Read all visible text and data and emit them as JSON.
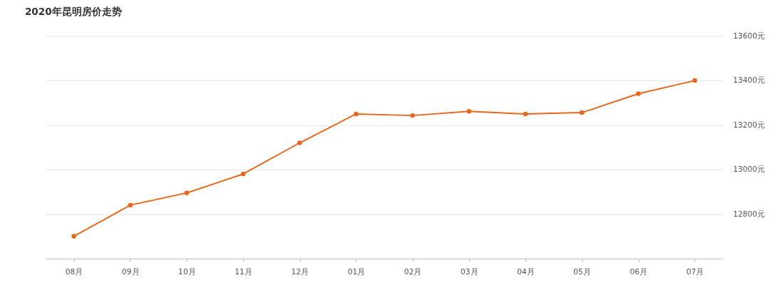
{
  "chart_data": {
    "type": "line",
    "title": "2020年昆明房价走势",
    "categories": [
      "08月",
      "09月",
      "10月",
      "11月",
      "12月",
      "01月",
      "02月",
      "03月",
      "04月",
      "05月",
      "06月",
      "07月"
    ],
    "series": [
      {
        "color": "#e8671c",
        "values": [
          12700,
          12840,
          12895,
          12980,
          13120,
          13250,
          13243,
          13262,
          13250,
          13256,
          13341,
          13400
        ]
      }
    ],
    "ylim": [
      12600,
      13600
    ],
    "yticks": [
      {
        "value": 12800,
        "label": "12800元"
      },
      {
        "value": 13000,
        "label": "13000元"
      },
      {
        "value": 13200,
        "label": "13200元"
      },
      {
        "value": 13400,
        "label": "13400元"
      },
      {
        "value": 13600,
        "label": "13600元"
      }
    ],
    "grid": "y",
    "marker": "circle",
    "line_style": "solid"
  }
}
